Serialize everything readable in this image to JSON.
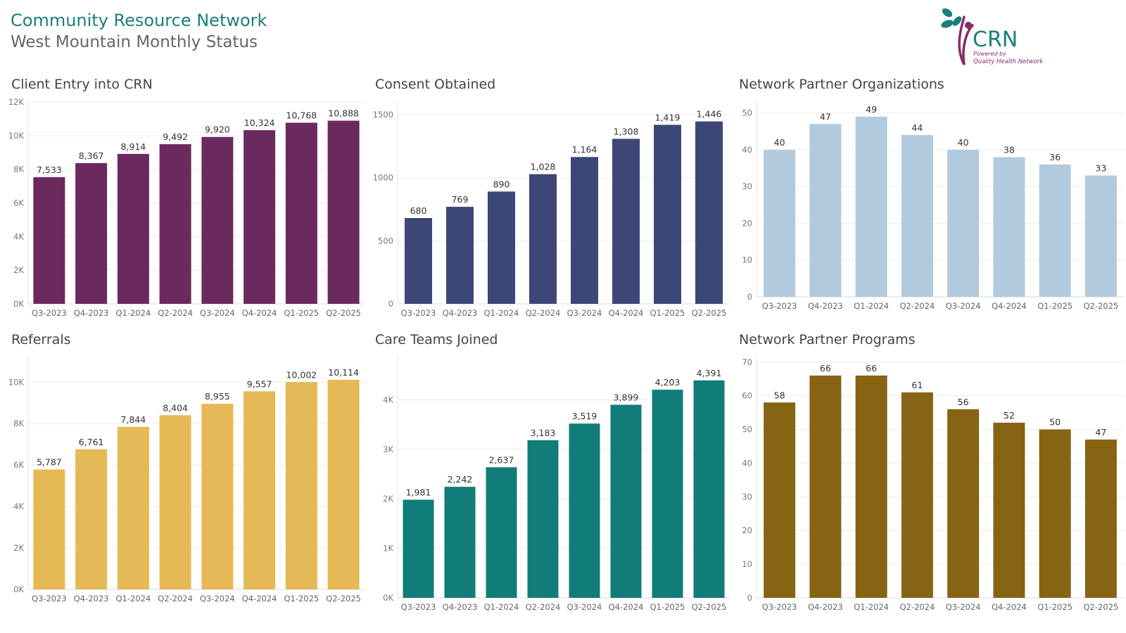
{
  "header": {
    "title": "Community Resource Network",
    "subtitle": "West Mountain Monthly Status"
  },
  "logo": {
    "wordmark": "CRN",
    "tagline_1": "Powered by",
    "tagline_2": "Quality Health Network",
    "colors": {
      "teal": "#1a7f7a",
      "purple": "#8a2a6b"
    }
  },
  "chart_data": [
    {
      "id": "client-entry",
      "type": "bar",
      "title": "Client Entry into CRN",
      "color": "#6b2a5e",
      "categories": [
        "Q3-2023",
        "Q4-2023",
        "Q1-2024",
        "Q2-2024",
        "Q3-2024",
        "Q4-2024",
        "Q1-2025",
        "Q2-2025"
      ],
      "values": [
        7533,
        8367,
        8914,
        9492,
        9920,
        10324,
        10768,
        10888
      ],
      "value_labels": [
        "7,533",
        "8,367",
        "8,914",
        "9,492",
        "9,920",
        "10,324",
        "10,768",
        "10,888"
      ],
      "ylim": [
        0,
        12000
      ],
      "yticks": [
        0,
        2000,
        4000,
        6000,
        8000,
        10000,
        12000
      ],
      "ytick_labels": [
        "0K",
        "2K",
        "4K",
        "6K",
        "8K",
        "10K",
        "12K"
      ],
      "xlabel": "",
      "ylabel": ""
    },
    {
      "id": "consent-obtained",
      "type": "bar",
      "title": "Consent Obtained",
      "color": "#3c4778",
      "categories": [
        "Q3-2023",
        "Q4-2023",
        "Q1-2024",
        "Q2-2024",
        "Q3-2024",
        "Q4-2024",
        "Q1-2025",
        "Q2-2025"
      ],
      "values": [
        680,
        769,
        890,
        1028,
        1164,
        1308,
        1419,
        1446
      ],
      "value_labels": [
        "680",
        "769",
        "890",
        "1,028",
        "1,164",
        "1,308",
        "1,419",
        "1,446"
      ],
      "ylim": [
        0,
        1600
      ],
      "yticks": [
        0,
        500,
        1000,
        1500
      ],
      "ytick_labels": [
        "0",
        "500",
        "1000",
        "1500"
      ],
      "xlabel": "",
      "ylabel": ""
    },
    {
      "id": "partner-orgs",
      "type": "bar",
      "title": "Network Partner Organizations",
      "color": "#b2cadd",
      "categories": [
        "Q3-2023",
        "Q4-2023",
        "Q1-2024",
        "Q2-2024",
        "Q3-2024",
        "Q4-2024",
        "Q1-2025",
        "Q2-2025"
      ],
      "values": [
        40,
        47,
        49,
        44,
        40,
        38,
        36,
        33
      ],
      "value_labels": [
        "40",
        "47",
        "49",
        "44",
        "40",
        "38",
        "36",
        "33"
      ],
      "ylim": [
        0,
        53
      ],
      "yticks": [
        0,
        10,
        20,
        30,
        40,
        50
      ],
      "ytick_labels": [
        "0",
        "10",
        "20",
        "30",
        "40",
        "50"
      ],
      "xlabel": "",
      "ylabel": ""
    },
    {
      "id": "referrals",
      "type": "bar",
      "title": "Referrals",
      "color": "#e5b955",
      "categories": [
        "Q3-2023",
        "Q4-2023",
        "Q1-2024",
        "Q2-2024",
        "Q3-2024",
        "Q4-2024",
        "Q1-2025",
        "Q2-2025"
      ],
      "values": [
        5787,
        6761,
        7844,
        8404,
        8955,
        9557,
        10002,
        10114
      ],
      "value_labels": [
        "5,787",
        "6,761",
        "7,844",
        "8,404",
        "8,955",
        "9,557",
        "10,002",
        "10,114"
      ],
      "ylim": [
        0,
        11300
      ],
      "yticks": [
        0,
        2000,
        4000,
        6000,
        8000,
        10000
      ],
      "ytick_labels": [
        "0K",
        "2K",
        "4K",
        "6K",
        "8K",
        "10K"
      ],
      "xlabel": "",
      "ylabel": ""
    },
    {
      "id": "care-teams",
      "type": "bar",
      "title": "Care Teams Joined",
      "color": "#127c78",
      "categories": [
        "Q3-2023",
        "Q4-2023",
        "Q1-2024",
        "Q2-2024",
        "Q3-2024",
        "Q4-2024",
        "Q1-2025",
        "Q2-2025"
      ],
      "values": [
        1981,
        2242,
        2637,
        3183,
        3519,
        3899,
        4203,
        4391
      ],
      "value_labels": [
        "1,981",
        "2,242",
        "2,637",
        "3,183",
        "3,519",
        "3,899",
        "4,203",
        "4,391"
      ],
      "ylim": [
        0,
        4900
      ],
      "yticks": [
        0,
        1000,
        2000,
        3000,
        4000
      ],
      "ytick_labels": [
        "0K",
        "1K",
        "2K",
        "3K",
        "4K"
      ],
      "xlabel": "",
      "ylabel": ""
    },
    {
      "id": "partner-programs",
      "type": "bar",
      "title": "Network Partner Programs",
      "color": "#876414",
      "categories": [
        "Q3-2023",
        "Q4-2023",
        "Q1-2024",
        "Q2-2024",
        "Q3-2024",
        "Q4-2024",
        "Q1-2025",
        "Q2-2025"
      ],
      "values": [
        58,
        66,
        66,
        61,
        56,
        52,
        50,
        47
      ],
      "value_labels": [
        "58",
        "66",
        "66",
        "61",
        "56",
        "52",
        "50",
        "47"
      ],
      "ylim": [
        0,
        71
      ],
      "yticks": [
        0,
        10,
        20,
        30,
        40,
        50,
        60,
        70
      ],
      "ytick_labels": [
        "0",
        "10",
        "20",
        "30",
        "40",
        "50",
        "60",
        "70"
      ],
      "xlabel": "",
      "ylabel": ""
    }
  ]
}
